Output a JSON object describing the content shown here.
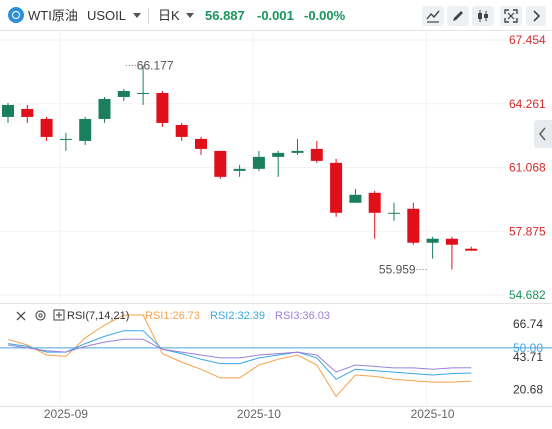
{
  "header": {
    "name": "WTI原油",
    "code": "USOIL",
    "timeframe": "日K",
    "price": "56.887",
    "change": "-0.001",
    "change_pct": "-0.00%"
  },
  "rsi_legend": {
    "title": "RSI(7,14,21)",
    "rsi1": "RSI1:26.73",
    "rsi2": "RSI2:32.39",
    "rsi3": "RSI3:36.03"
  },
  "colors": {
    "up": "#1b7f5f",
    "down": "#e0101a",
    "axis_red": "#d42a2a",
    "axis_green": "#17955c",
    "rsi1": "#f5a24a",
    "rsi2": "#3aa8e0",
    "rsi3": "#9b80d9",
    "midline": "#4aa3df"
  },
  "chart_data": [
    {
      "type": "candlestick",
      "price_axis": {
        "ticks": [
          67.454,
          64.261,
          61.068,
          57.875,
          54.682
        ],
        "ylim": [
          54.682,
          67.454
        ]
      },
      "x_ticks": [
        "2025-09",
        "2025-10",
        "2025-10"
      ],
      "annotations": [
        {
          "text": "66.177",
          "index": 6,
          "value": 66.177
        },
        {
          "text": "55.959",
          "index": 22,
          "value": 55.959
        }
      ],
      "candles": [
        {
          "o": 63.6,
          "h": 64.3,
          "l": 63.3,
          "c": 64.2
        },
        {
          "o": 64.0,
          "h": 64.2,
          "l": 63.3,
          "c": 63.6
        },
        {
          "o": 63.5,
          "h": 63.6,
          "l": 62.4,
          "c": 62.6
        },
        {
          "o": 62.5,
          "h": 62.8,
          "l": 61.9,
          "c": 62.5
        },
        {
          "o": 62.4,
          "h": 63.6,
          "l": 62.2,
          "c": 63.5
        },
        {
          "o": 63.5,
          "h": 64.6,
          "l": 63.3,
          "c": 64.5
        },
        {
          "o": 64.6,
          "h": 65.0,
          "l": 64.4,
          "c": 64.9
        },
        {
          "o": 64.8,
          "h": 66.177,
          "l": 64.2,
          "c": 64.8
        },
        {
          "o": 64.8,
          "h": 64.9,
          "l": 63.1,
          "c": 63.3
        },
        {
          "o": 63.2,
          "h": 63.3,
          "l": 62.4,
          "c": 62.6
        },
        {
          "o": 62.5,
          "h": 62.6,
          "l": 61.7,
          "c": 62.0
        },
        {
          "o": 61.9,
          "h": 61.9,
          "l": 60.5,
          "c": 60.6
        },
        {
          "o": 60.9,
          "h": 61.2,
          "l": 60.6,
          "c": 61.0
        },
        {
          "o": 61.0,
          "h": 61.9,
          "l": 60.9,
          "c": 61.6
        },
        {
          "o": 61.6,
          "h": 61.9,
          "l": 60.6,
          "c": 61.8
        },
        {
          "o": 61.8,
          "h": 62.5,
          "l": 61.7,
          "c": 61.9
        },
        {
          "o": 62.0,
          "h": 62.4,
          "l": 61.3,
          "c": 61.4
        },
        {
          "o": 61.3,
          "h": 61.5,
          "l": 58.6,
          "c": 58.8
        },
        {
          "o": 59.3,
          "h": 60.0,
          "l": 59.3,
          "c": 59.7
        },
        {
          "o": 59.8,
          "h": 59.9,
          "l": 57.5,
          "c": 58.8
        },
        {
          "o": 58.8,
          "h": 59.3,
          "l": 58.4,
          "c": 58.8
        },
        {
          "o": 59.0,
          "h": 59.3,
          "l": 57.2,
          "c": 57.3
        },
        {
          "o": 57.3,
          "h": 57.6,
          "l": 56.5,
          "c": 57.5
        },
        {
          "o": 57.5,
          "h": 57.6,
          "l": 55.959,
          "c": 57.2
        },
        {
          "o": 57.0,
          "h": 57.1,
          "l": 56.9,
          "c": 56.9
        }
      ]
    },
    {
      "type": "line",
      "title": "RSI(7,14,21)",
      "y_ticks": [
        66.74,
        50.0,
        43.71,
        20.68
      ],
      "ylim": [
        10,
        80
      ],
      "series": [
        {
          "name": "RSI1",
          "values": [
            56,
            52,
            45,
            44,
            57,
            66,
            73,
            73,
            46,
            40,
            35,
            29,
            29,
            38,
            42,
            45,
            38,
            16,
            31,
            30,
            28,
            27,
            26,
            26,
            26.73
          ]
        },
        {
          "name": "RSI2",
          "values": [
            53,
            51,
            47,
            47,
            53,
            58,
            62,
            62,
            49,
            46,
            42,
            39,
            39,
            43,
            45,
            47,
            43,
            28,
            35,
            34,
            33,
            32,
            31,
            32,
            32.39
          ]
        },
        {
          "name": "RSI3",
          "values": [
            52,
            50,
            48,
            47,
            51,
            54,
            56,
            56,
            49,
            47,
            45,
            43,
            43,
            45,
            46,
            47,
            45,
            33,
            38,
            37,
            36,
            36,
            35,
            36,
            36.03
          ]
        }
      ],
      "reference_line": 50
    }
  ]
}
